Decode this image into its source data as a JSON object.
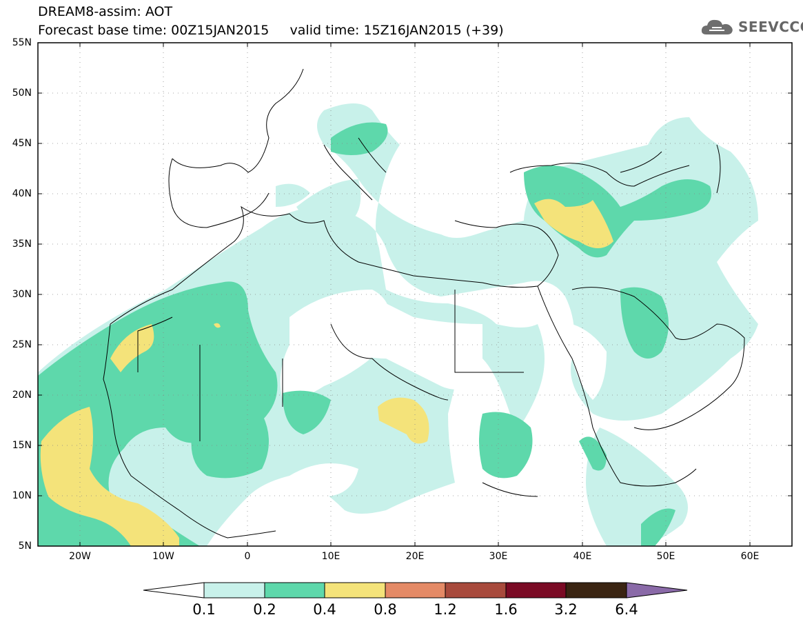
{
  "header": {
    "title_line1": "DREAM8-assim: AOT",
    "title_line2": "Forecast base time: 00Z15JAN2015     valid time: 15Z16JAN2015 (+39)",
    "logo_text": "SEEVCCC",
    "logo_icon": "cloud-icon"
  },
  "map": {
    "lat_labels": [
      "55N",
      "50N",
      "45N",
      "40N",
      "35N",
      "30N",
      "25N",
      "20N",
      "15N",
      "10N",
      "5N"
    ],
    "lon_labels": [
      "20W",
      "10W",
      "0",
      "10E",
      "20E",
      "30E",
      "40E",
      "50E",
      "60E"
    ],
    "lon_range": [
      -25,
      65
    ],
    "lat_range": [
      5,
      55
    ],
    "gridlines": "dotted"
  },
  "legend": {
    "labels": [
      "0.1",
      "0.2",
      "0.4",
      "0.8",
      "1.2",
      "1.6",
      "3.2",
      "6.4"
    ],
    "colors": {
      "below_0.1": "#ffffff",
      "0.1-0.2": "#c8f1ea",
      "0.2-0.4": "#5ed8ab",
      "0.4-0.8": "#f4e37a",
      "0.8-1.2": "#e48a66",
      "1.2-1.6": "#a84a3c",
      "1.6-3.2": "#7a0a24",
      "3.2-6.4": "#3a2412",
      "above_6.4": "#8a6aa8"
    }
  }
}
